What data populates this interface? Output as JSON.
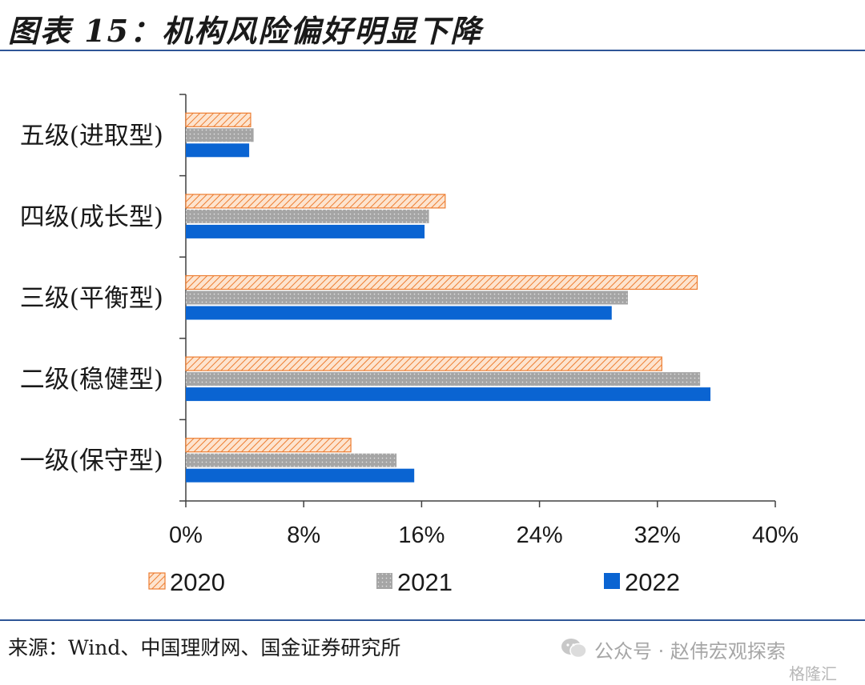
{
  "title": "图表 15：机构风险偏好明显下降",
  "source": "来源：Wind、中国理财网、国金证券研究所",
  "watermark": {
    "text": "公众号 · 赵伟宏观探索",
    "badge": "格隆汇",
    "icon": "wechat-icon"
  },
  "colors": {
    "2020": "#f4a460",
    "2020_stroke": "#ed7d31",
    "2021": "#a5a5a5",
    "2022": "#0a64d2",
    "rule": "#2f5597"
  },
  "chart_data": {
    "type": "bar",
    "orientation": "horizontal",
    "categories": [
      "五级(进取型)",
      "四级(成长型)",
      "三级(平衡型)",
      "二级(稳健型)",
      "一级(保守型)"
    ],
    "series": [
      {
        "name": "2020",
        "values": [
          4.4,
          17.6,
          34.7,
          32.3,
          11.2
        ]
      },
      {
        "name": "2021",
        "values": [
          4.6,
          16.5,
          30.0,
          34.9,
          14.3
        ]
      },
      {
        "name": "2022",
        "values": [
          4.3,
          16.2,
          28.9,
          35.6,
          15.5
        ]
      }
    ],
    "xlim": [
      0,
      40
    ],
    "xticks": [
      "0%",
      "8%",
      "16%",
      "24%",
      "32%",
      "40%"
    ],
    "legend": "bottom",
    "grid": false
  }
}
